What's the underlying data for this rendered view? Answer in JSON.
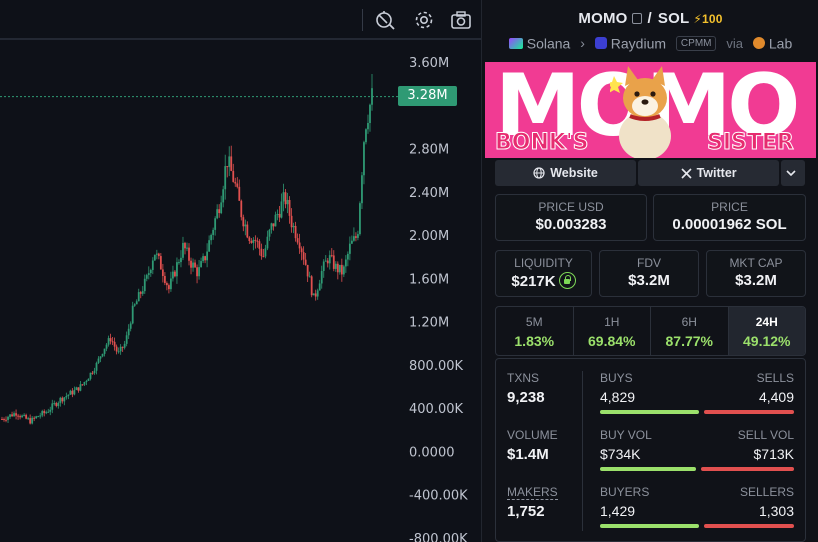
{
  "chart": {
    "current_price_label": "3.28M",
    "y_axis_labels": [
      "3.60M",
      "2.80M",
      "2.40M",
      "2.00M",
      "1.60M",
      "1.20M",
      "800.00K",
      "400.00K",
      "0.0000",
      "-400.00K",
      "-800.00K"
    ],
    "colors": {
      "up": "#2f9a74",
      "down": "#e1504f",
      "price_tag": "#2f9a74"
    },
    "toolbar_icons": [
      "replay-icon",
      "gear-icon",
      "camera-icon"
    ]
  },
  "chart_data": {
    "type": "candlestick",
    "title": "",
    "ylim": [
      -800000,
      3600000
    ],
    "last_price": 3280000,
    "approx_close_path": [
      300000,
      330000,
      360000,
      310000,
      280000,
      330000,
      360000,
      420000,
      480000,
      520000,
      560000,
      610000,
      700000,
      800000,
      950000,
      1050000,
      900000,
      1000000,
      1300000,
      1450000,
      1600000,
      1850000,
      1700000,
      1500000,
      1700000,
      1900000,
      1750000,
      1650000,
      1800000,
      2050000,
      2300000,
      2700000,
      2500000,
      2200000,
      2000000,
      1950000,
      1800000,
      2050000,
      2200000,
      2350000,
      2100000,
      1950000,
      1700000,
      1400000,
      1650000,
      1800000,
      1700000,
      1650000,
      1900000,
      2000000,
      3000000,
      3280000
    ]
  },
  "pair": {
    "base": "MOMO",
    "slash": "/",
    "quote": "SOL",
    "boosts": "100",
    "chain": "Solana",
    "dex": "Raydium",
    "pool_type": "CPMM",
    "via": "via",
    "launchpad": "Lab"
  },
  "banner": {
    "title": "MOMO",
    "left_word": "BONK'S",
    "right_word": "SISTER"
  },
  "links": {
    "website": "Website",
    "twitter": "Twitter"
  },
  "prices": {
    "usd_label": "PRICE USD",
    "usd_value": "$0.003283",
    "native_label": "PRICE",
    "native_value": "0.00001962 SOL"
  },
  "metrics": {
    "liquidity_label": "LIQUIDITY",
    "liquidity_value": "$217K",
    "fdv_label": "FDV",
    "fdv_value": "$3.2M",
    "mcap_label": "MKT CAP",
    "mcap_value": "$3.2M"
  },
  "timeframes": [
    {
      "name": "5M",
      "change": "1.83%"
    },
    {
      "name": "1H",
      "change": "69.84%"
    },
    {
      "name": "6H",
      "change": "87.77%"
    },
    {
      "name": "24H",
      "change": "49.12%",
      "active": true
    }
  ],
  "stats": {
    "txns_label": "TXNS",
    "txns_value": "9,238",
    "buys_label": "BUYS",
    "buys_value": "4,829",
    "sells_label": "SELLS",
    "sells_value": "4,409",
    "buys_ratio": 0.523,
    "volume_label": "VOLUME",
    "volume_value": "$1.4M",
    "buy_vol_label": "BUY VOL",
    "buy_vol_value": "$734K",
    "sell_vol_label": "SELL VOL",
    "sell_vol_value": "$713K",
    "buy_vol_ratio": 0.507,
    "makers_label": "MAKERS",
    "makers_value": "1,752",
    "buyers_label": "BUYERS",
    "buyers_value": "1,429",
    "sellers_label": "SELLERS",
    "sellers_value": "1,303",
    "buyers_ratio": 0.523
  },
  "colors": {
    "accent_green": "#9be06b",
    "accent_red": "#e1504f",
    "banner_pink": "#f13b93",
    "boost_yellow": "#f4c12d"
  }
}
